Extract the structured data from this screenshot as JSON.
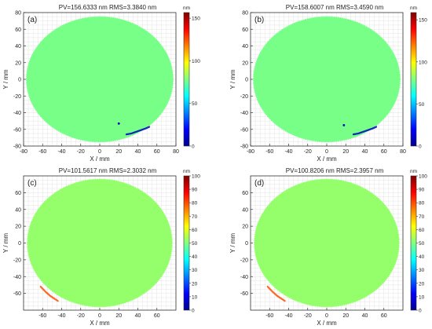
{
  "chart_data": [
    {
      "type": "heatmap",
      "panel_label": "(a)",
      "title": "PV=156.6333 nm     RMS=3.3840 nm",
      "xlabel": "X / mm",
      "ylabel": "Y / mm",
      "xlim": [
        -80,
        80
      ],
      "ylim": [
        -80,
        80
      ],
      "xticks": [
        -80,
        -60,
        -40,
        -20,
        0,
        20,
        40,
        60,
        80
      ],
      "yticks": [
        -80,
        -60,
        -40,
        -20,
        0,
        20,
        40,
        60,
        80
      ],
      "grid": true,
      "aperture": {
        "shape": "ellipse",
        "cx": 0,
        "cy": 0,
        "rx": 77,
        "ry": 75
      },
      "background_value": 77,
      "colorbar": {
        "unit": "nm",
        "min": 0,
        "max": 156.6,
        "ticks": [
          0,
          50,
          100,
          150
        ]
      },
      "defects": [
        {
          "name": "edge-defect",
          "x": [
            28,
            33,
            38,
            43,
            48,
            52
          ],
          "y": [
            -66,
            -65,
            -63,
            -61,
            -59,
            -57
          ],
          "value": 10
        },
        {
          "name": "spot",
          "x": [
            20
          ],
          "y": [
            -53
          ],
          "value": 10
        }
      ]
    },
    {
      "type": "heatmap",
      "panel_label": "(b)",
      "title": "PV=158.6007 nm     RMS=3.4590 nm",
      "xlabel": "X / mm",
      "ylabel": "Y / mm",
      "xlim": [
        -80,
        80
      ],
      "ylim": [
        -80,
        80
      ],
      "xticks": [
        -80,
        -60,
        -40,
        -20,
        0,
        20,
        40,
        60,
        80
      ],
      "yticks": [
        -80,
        -60,
        -40,
        -20,
        0,
        20,
        40,
        60,
        80
      ],
      "grid": true,
      "aperture": {
        "shape": "ellipse",
        "cx": 0,
        "cy": 0,
        "rx": 77,
        "ry": 75
      },
      "background_value": 78,
      "colorbar": {
        "unit": "nm",
        "min": 0,
        "max": 158.6,
        "ticks": [
          0,
          50,
          100,
          150
        ]
      },
      "defects": [
        {
          "name": "edge-defect",
          "x": [
            28,
            33,
            38,
            43,
            48,
            52
          ],
          "y": [
            -66,
            -65,
            -63,
            -61,
            -59,
            -57
          ],
          "value": 10
        },
        {
          "name": "spot",
          "x": [
            18
          ],
          "y": [
            -55
          ],
          "value": 10
        }
      ]
    },
    {
      "type": "heatmap",
      "panel_label": "(c)",
      "title": "PV=101.5617 nm     RMS=2.3032 nm",
      "xlabel": "X / mm",
      "ylabel": "Y / mm",
      "xlim": [
        -80,
        80
      ],
      "ylim": [
        -80,
        80
      ],
      "xticks": [
        -60,
        -40,
        -20,
        0,
        20,
        40,
        60
      ],
      "yticks": [
        -60,
        -40,
        -20,
        0,
        20,
        40,
        60
      ],
      "grid": true,
      "aperture": {
        "shape": "ellipse",
        "cx": 0,
        "cy": 0,
        "rx": 76,
        "ry": 76
      },
      "background_value": 52,
      "colorbar": {
        "unit": "nm",
        "min": 0,
        "max": 100,
        "ticks": [
          0,
          10,
          20,
          30,
          40,
          50,
          60,
          70,
          80,
          90,
          100
        ]
      },
      "defects": [
        {
          "name": "edge-defect",
          "x": [
            -62,
            -57,
            -52,
            -48,
            -44
          ],
          "y": [
            -52,
            -58,
            -63,
            -66,
            -69
          ],
          "value": 80
        }
      ]
    },
    {
      "type": "heatmap",
      "panel_label": "(d)",
      "title": "PV=100.8206 nm     RMS=2.3957 nm",
      "xlabel": "X / mm",
      "ylabel": "Y / mm",
      "xlim": [
        -80,
        80
      ],
      "ylim": [
        -80,
        80
      ],
      "xticks": [
        -60,
        -40,
        -20,
        0,
        20,
        40,
        60
      ],
      "yticks": [
        -60,
        -40,
        -20,
        0,
        20,
        40,
        60
      ],
      "grid": true,
      "aperture": {
        "shape": "ellipse",
        "cx": 0,
        "cy": 0,
        "rx": 76,
        "ry": 76
      },
      "background_value": 52,
      "colorbar": {
        "unit": "nm",
        "min": 0,
        "max": 100,
        "ticks": [
          0,
          10,
          20,
          30,
          40,
          50,
          60,
          70,
          80,
          90,
          100
        ]
      },
      "defects": [
        {
          "name": "edge-defect",
          "x": [
            -62,
            -57,
            -52,
            -48,
            -44
          ],
          "y": [
            -52,
            -58,
            -63,
            -66,
            -69
          ],
          "value": 80
        }
      ]
    }
  ]
}
